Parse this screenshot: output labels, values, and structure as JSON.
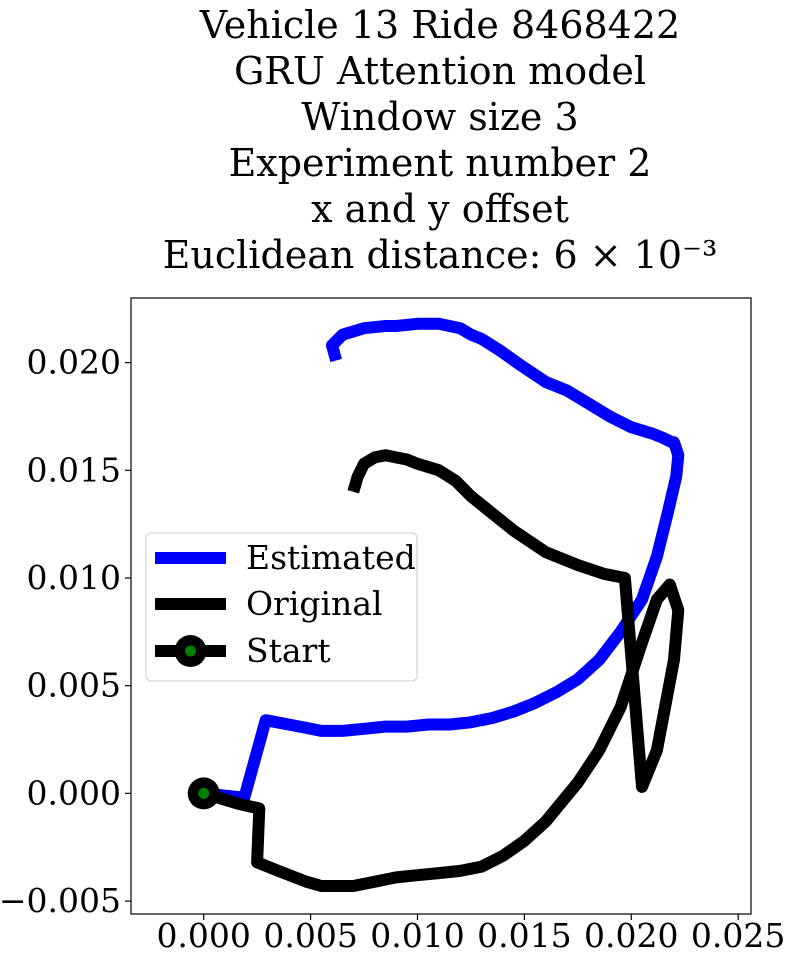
{
  "chart_data": {
    "type": "line",
    "title_lines": [
      "Vehicle 13 Ride 8468422",
      "GRU Attention model",
      "Window size 3",
      "Experiment number 2",
      "x and y offset",
      "Euclidean distance: 6 × 10⁻³"
    ],
    "xlim": [
      -0.0034,
      0.0256
    ],
    "ylim": [
      -0.0056,
      0.023
    ],
    "xticks": [
      0.0,
      0.005,
      0.01,
      0.015,
      0.02,
      0.025
    ],
    "xtick_labels": [
      "0.000",
      "0.005",
      "0.010",
      "0.015",
      "0.020",
      "0.025"
    ],
    "yticks": [
      -0.005,
      0.0,
      0.005,
      0.01,
      0.015,
      0.02
    ],
    "ytick_labels": [
      "−0.005",
      "0.000",
      "0.005",
      "0.010",
      "0.015",
      "0.020"
    ],
    "grid": false,
    "legend_position": "center-left",
    "series": [
      {
        "name": "Estimated",
        "color": "#0000ff",
        "x": [
          0.0,
          0.0019,
          0.0029,
          0.0045,
          0.0055,
          0.0065,
          0.0075,
          0.0085,
          0.0095,
          0.0105,
          0.0115,
          0.0125,
          0.0135,
          0.0145,
          0.0155,
          0.0165,
          0.0175,
          0.0185,
          0.0195,
          0.0205,
          0.0212,
          0.0217,
          0.0221,
          0.0222,
          0.022,
          0.0219,
          0.0215,
          0.021,
          0.02,
          0.019,
          0.018,
          0.017,
          0.016,
          0.0148,
          0.0138,
          0.013,
          0.0125,
          0.012,
          0.011,
          0.01,
          0.009,
          0.0085,
          0.0075,
          0.0065,
          0.006,
          0.0062
        ],
        "y": [
          0.0,
          -0.0002,
          0.0034,
          0.0031,
          0.0029,
          0.0029,
          0.003,
          0.0031,
          0.0031,
          0.0032,
          0.0032,
          0.0033,
          0.0035,
          0.0038,
          0.0042,
          0.0047,
          0.0053,
          0.0062,
          0.0075,
          0.009,
          0.011,
          0.013,
          0.0147,
          0.0157,
          0.0163,
          0.0163,
          0.0165,
          0.0167,
          0.017,
          0.0175,
          0.0181,
          0.0187,
          0.0191,
          0.0199,
          0.0206,
          0.0211,
          0.0213,
          0.0216,
          0.0218,
          0.0218,
          0.0217,
          0.0217,
          0.0216,
          0.0213,
          0.0208,
          0.0201
        ]
      },
      {
        "name": "Original",
        "color": "#000000",
        "x": [
          0.0,
          0.0017,
          0.0026,
          0.0025,
          0.0035,
          0.0048,
          0.0055,
          0.0062,
          0.007,
          0.008,
          0.009,
          0.01,
          0.011,
          0.012,
          0.013,
          0.014,
          0.015,
          0.016,
          0.0175,
          0.0185,
          0.0195,
          0.0205,
          0.0212,
          0.0218,
          0.0222,
          0.022,
          0.0212,
          0.0205,
          0.0197,
          0.0187,
          0.0175,
          0.016,
          0.0145,
          0.0135,
          0.0125,
          0.0118,
          0.011,
          0.01,
          0.0095,
          0.009,
          0.0085,
          0.008,
          0.0075,
          0.0072,
          0.007
        ],
        "y": [
          0.0,
          -0.0005,
          -0.0007,
          -0.0032,
          -0.0036,
          -0.0041,
          -0.0043,
          -0.0043,
          -0.0043,
          -0.0041,
          -0.0039,
          -0.0038,
          -0.0037,
          -0.0036,
          -0.0034,
          -0.0029,
          -0.0022,
          -0.0013,
          0.0005,
          0.002,
          0.004,
          0.007,
          0.009,
          0.0097,
          0.0085,
          0.0062,
          0.002,
          0.0003,
          0.01,
          0.0102,
          0.0106,
          0.0112,
          0.0122,
          0.013,
          0.0138,
          0.0145,
          0.015,
          0.0153,
          0.0155,
          0.0156,
          0.0157,
          0.0156,
          0.0153,
          0.0147,
          0.014
        ]
      },
      {
        "name": "Start",
        "color": "#000000",
        "marker_color": "#008000",
        "x": [
          0.0
        ],
        "y": [
          0.0
        ]
      }
    ]
  }
}
